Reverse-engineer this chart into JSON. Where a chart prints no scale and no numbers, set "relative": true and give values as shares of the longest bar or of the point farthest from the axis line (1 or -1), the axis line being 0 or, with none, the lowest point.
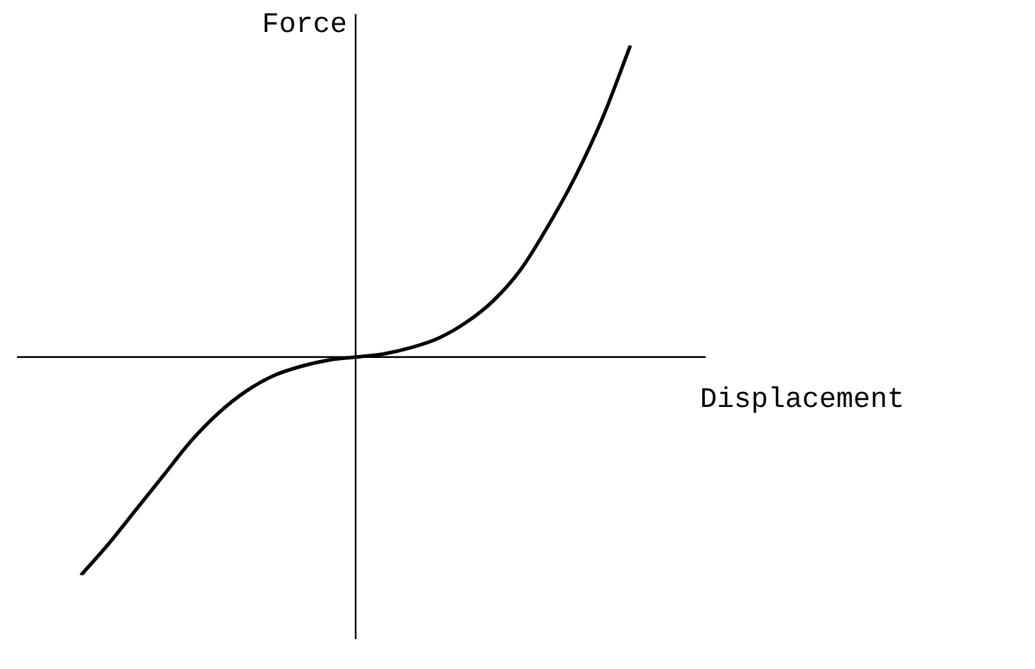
{
  "chart_data": {
    "type": "line",
    "relative": true,
    "xlabel": "Displacement",
    "ylabel": "Force",
    "marker": "none",
    "legend": false,
    "categories": [
      null,
      null,
      null,
      null,
      null,
      null,
      null,
      null,
      null,
      null,
      null,
      null,
      null,
      null,
      null,
      null,
      null,
      null,
      null,
      null,
      null
    ],
    "series": [
      {
        "color": "#000000",
        "values": [
          -0.7,
          -0.6,
          -0.49,
          -0.38,
          -0.27,
          -0.18,
          -0.11,
          -0.06,
          -0.03,
          -0.01,
          0,
          0.01,
          0.03,
          0.06,
          0.11,
          0.18,
          0.28,
          0.42,
          0.58,
          0.77,
          1
        ]
      }
    ]
  }
}
